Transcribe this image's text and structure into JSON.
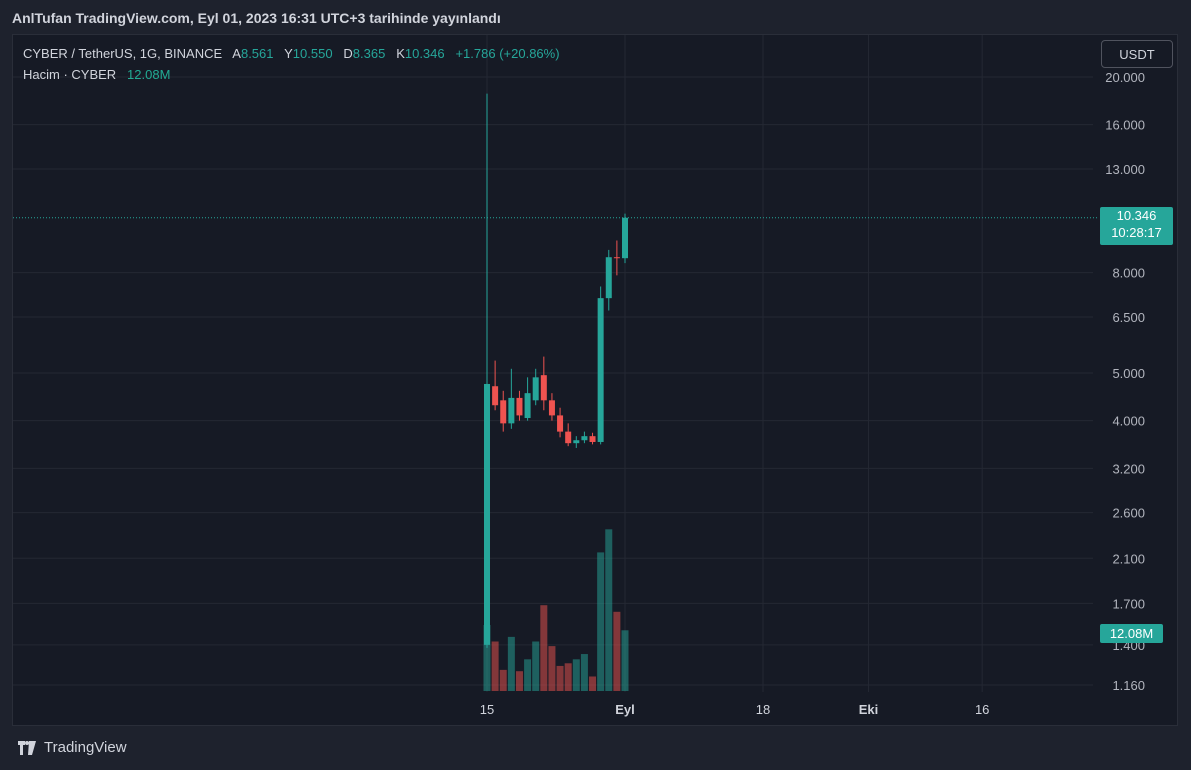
{
  "header": {
    "published_text": "AnlTufan TradingView.com, Eyl 01, 2023 16:31 UTC+3 tarihinde yayınlandı"
  },
  "legend": {
    "symbol": "CYBER / TetherUS, 1G, BINANCE",
    "open_label": "A",
    "open_value": "8.561",
    "high_label": "Y",
    "high_value": "10.550",
    "low_label": "D",
    "low_value": "8.365",
    "close_label": "K",
    "close_value": "10.346",
    "change": "+1.786 (+20.86%)",
    "volume_label": "Hacim · CYBER",
    "volume_value": "12.08M"
  },
  "currency_button": "USDT",
  "price_tag": {
    "price": "10.346",
    "countdown": "10:28:17"
  },
  "volume_tag": "12.08M",
  "brand": {
    "name": "TradingView",
    "logo_icon": "tradingview-logo-icon"
  },
  "colors": {
    "up": "#26a69a",
    "down": "#ef5350",
    "background": "#161a25",
    "grid": "#242833"
  },
  "chart_data": {
    "type": "candlestick",
    "y_scale": "log",
    "y_ticks": [
      "20.000",
      "16.000",
      "13.000",
      "10.346",
      "8.000",
      "6.500",
      "5.000",
      "4.000",
      "3.200",
      "2.600",
      "2.100",
      "1.700",
      "1.400",
      "1.160"
    ],
    "y_tick_values": [
      20,
      16,
      13,
      8,
      6.5,
      5,
      4,
      3.2,
      2.6,
      2.1,
      1.7,
      1.4,
      1.16
    ],
    "y_tick_text": [
      "20.000",
      "16.000",
      "13.000",
      "8.000",
      "6.500",
      "5.000",
      "4.000",
      "3.200",
      "2.600",
      "2.100",
      "1.700",
      "1.400",
      "1.160"
    ],
    "x_tick_labels": [
      {
        "label": "15",
        "day": 15
      },
      {
        "label": "Eyl",
        "day": 32
      },
      {
        "label": "18",
        "day": 49
      },
      {
        "label": "Eki",
        "day": 62
      },
      {
        "label": "16",
        "day": 76
      }
    ],
    "last_price": 10.346,
    "candles": [
      {
        "day": 15,
        "o": 1.4,
        "h": 18.5,
        "l": 1.38,
        "c": 4.75,
        "v": 1.0
      },
      {
        "day": 16,
        "o": 4.7,
        "h": 5.3,
        "l": 4.2,
        "c": 4.3,
        "v": 0.75
      },
      {
        "day": 17,
        "o": 4.4,
        "h": 4.6,
        "l": 3.8,
        "c": 3.95,
        "v": 0.32
      },
      {
        "day": 18,
        "o": 3.95,
        "h": 5.1,
        "l": 3.85,
        "c": 4.45,
        "v": 0.82
      },
      {
        "day": 19,
        "o": 4.45,
        "h": 4.6,
        "l": 4.0,
        "c": 4.1,
        "v": 0.3
      },
      {
        "day": 20,
        "o": 4.05,
        "h": 4.9,
        "l": 4.0,
        "c": 4.55,
        "v": 0.48
      },
      {
        "day": 21,
        "o": 4.4,
        "h": 5.1,
        "l": 4.3,
        "c": 4.9,
        "v": 0.75
      },
      {
        "day": 22,
        "o": 4.95,
        "h": 5.4,
        "l": 4.2,
        "c": 4.4,
        "v": 1.3
      },
      {
        "day": 23,
        "o": 4.4,
        "h": 4.55,
        "l": 4.0,
        "c": 4.1,
        "v": 0.68
      },
      {
        "day": 24,
        "o": 4.1,
        "h": 4.25,
        "l": 3.7,
        "c": 3.8,
        "v": 0.38
      },
      {
        "day": 25,
        "o": 3.8,
        "h": 3.95,
        "l": 3.55,
        "c": 3.6,
        "v": 0.42
      },
      {
        "day": 26,
        "o": 3.6,
        "h": 3.72,
        "l": 3.52,
        "c": 3.65,
        "v": 0.48
      },
      {
        "day": 27,
        "o": 3.65,
        "h": 3.8,
        "l": 3.6,
        "c": 3.72,
        "v": 0.56
      },
      {
        "day": 28,
        "o": 3.72,
        "h": 3.78,
        "l": 3.58,
        "c": 3.62,
        "v": 0.22
      },
      {
        "day": 29,
        "o": 3.62,
        "h": 7.5,
        "l": 3.58,
        "c": 7.1,
        "v": 2.1
      },
      {
        "day": 30,
        "o": 7.1,
        "h": 8.9,
        "l": 6.7,
        "c": 8.6,
        "v": 2.45
      },
      {
        "day": 31,
        "o": 8.6,
        "h": 9.3,
        "l": 7.9,
        "c": 8.56,
        "v": 1.2
      },
      {
        "day": 32,
        "o": 8.561,
        "h": 10.55,
        "l": 8.365,
        "c": 10.346,
        "v": 0.92
      }
    ]
  }
}
